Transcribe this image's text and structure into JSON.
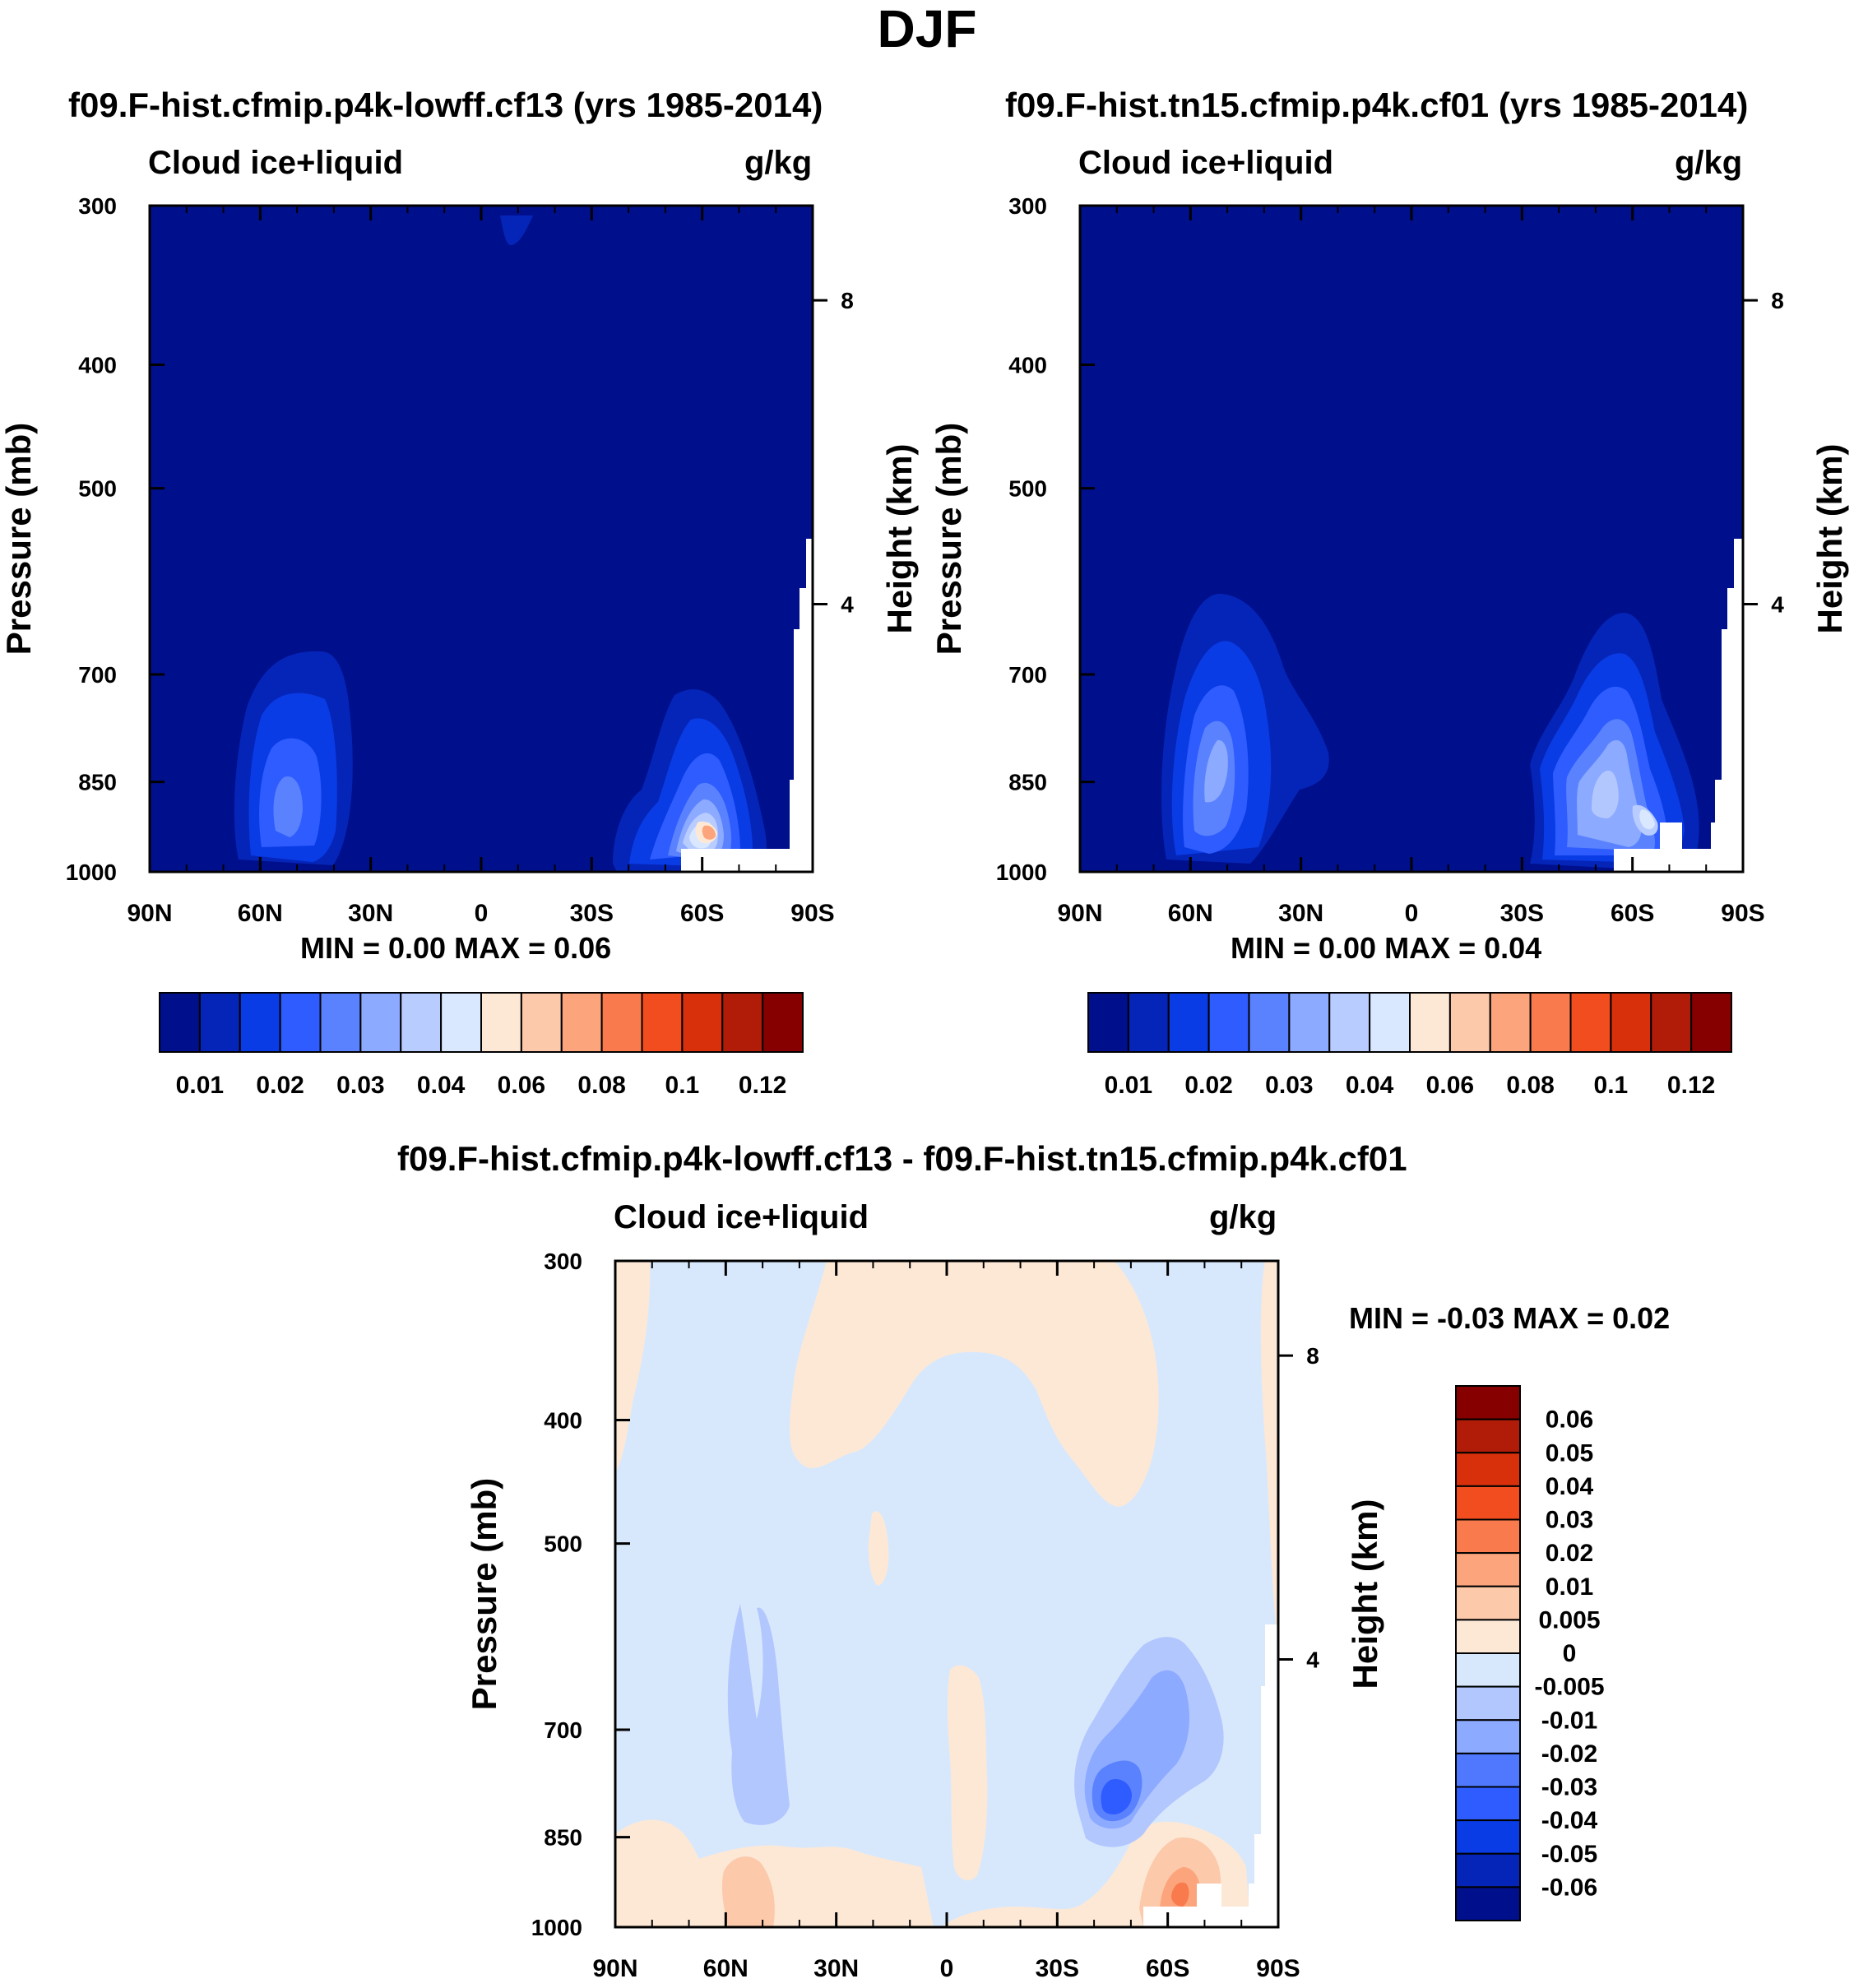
{
  "main_title": "DJF",
  "panels": [
    {
      "id": "top-left",
      "title": "f09.F-hist.cfmip.p4k-lowff.cf13 (yrs 1985-2014)",
      "field": "Cloud ice+liquid",
      "units": "g/kg",
      "minmax": "MIN =   0.00  MAX =   0.06"
    },
    {
      "id": "top-right",
      "title": "f09.F-hist.tn15.cfmip.p4k.cf01 (yrs 1985-2014)",
      "field": "Cloud ice+liquid",
      "units": "g/kg",
      "minmax": "MIN =   0.00  MAX =   0.04"
    },
    {
      "id": "bottom",
      "title": "f09.F-hist.cfmip.p4k-lowff.cf13 - f09.F-hist.tn15.cfmip.p4k.cf01",
      "field": "Cloud ice+liquid",
      "units": "g/kg",
      "minmax": "MIN =  -0.03  MAX =   0.02"
    }
  ],
  "axes": {
    "x_ticks": [
      "90N",
      "60N",
      "30N",
      "0",
      "30S",
      "60S",
      "90S"
    ],
    "y_ticks": [
      "300",
      "400",
      "500",
      "700",
      "850",
      "1000"
    ],
    "y_label": "Pressure (mb)",
    "y2_ticks": [
      "8",
      "4"
    ],
    "y2_label": "Height (km)"
  },
  "colorbar_abs": {
    "colors": [
      "#000f8c",
      "#0525b8",
      "#0a3ce6",
      "#2e5cff",
      "#5a82ff",
      "#8caaff",
      "#b8ccff",
      "#d9e8ff",
      "#fde8d6",
      "#fcc9aa",
      "#fca47c",
      "#f97a4c",
      "#f24d1e",
      "#d9300c",
      "#b01c08",
      "#860000"
    ],
    "labels": [
      "0.01",
      "0.02",
      "0.03",
      "0.04",
      "0.06",
      "0.08",
      "0.1",
      "0.12"
    ]
  },
  "colorbar_diff": {
    "colors": [
      "#000f8c",
      "#0525b8",
      "#0a3ce6",
      "#2e5cff",
      "#4f78ff",
      "#8caaff",
      "#b3c7ff",
      "#d8e8fc",
      "#fde8d6",
      "#fcc9aa",
      "#fca47c",
      "#f97a4c",
      "#f24d1e",
      "#d9300c",
      "#b01c08",
      "#860000"
    ],
    "labels": [
      "0.06",
      "0.05",
      "0.04",
      "0.03",
      "0.02",
      "0.01",
      "0.005",
      "0",
      "-0.005",
      "-0.01",
      "-0.02",
      "-0.03",
      "-0.04",
      "-0.05",
      "-0.06"
    ]
  },
  "chart_data": [
    {
      "type": "heatmap",
      "title": "f09.F-hist.cfmip.p4k-lowff.cf13 (yrs 1985-2014)",
      "subtitle": "Cloud ice+liquid",
      "units": "g/kg",
      "xlabel": "",
      "ylabel": "Pressure (mb)",
      "y2label": "Height (km)",
      "x_ticks": [
        "90N",
        "60N",
        "30N",
        "0",
        "30S",
        "60S",
        "90S"
      ],
      "y_ticks": [
        300,
        400,
        500,
        700,
        850,
        1000
      ],
      "xlim": [
        90,
        -90
      ],
      "ylim": [
        1000,
        300
      ],
      "y_scale": "log",
      "min": 0.0,
      "max": 0.06,
      "features": [
        {
          "lat": -60,
          "p": 940,
          "value": 0.06
        },
        {
          "lat": -60,
          "p": 910,
          "value": 0.04
        },
        {
          "lat": 54,
          "p": 920,
          "value": 0.03
        },
        {
          "lat": 52,
          "p": 880,
          "value": 0.02
        },
        {
          "lat": 0,
          "p": 500,
          "value": 0.005
        }
      ]
    },
    {
      "type": "heatmap",
      "title": "f09.F-hist.tn15.cfmip.p4k.cf01 (yrs 1985-2014)",
      "subtitle": "Cloud ice+liquid",
      "units": "g/kg",
      "xlabel": "",
      "ylabel": "Pressure (mb)",
      "y2label": "Height (km)",
      "x_ticks": [
        "90N",
        "60N",
        "30N",
        "0",
        "30S",
        "60S",
        "90S"
      ],
      "y_ticks": [
        300,
        400,
        500,
        700,
        850,
        1000
      ],
      "xlim": [
        90,
        -90
      ],
      "ylim": [
        1000,
        300
      ],
      "y_scale": "log",
      "min": 0.0,
      "max": 0.04,
      "features": [
        {
          "lat": 52,
          "p": 880,
          "value": 0.03
        },
        {
          "lat": -58,
          "p": 880,
          "value": 0.04
        },
        {
          "lat": -60,
          "p": 940,
          "value": 0.04
        }
      ]
    },
    {
      "type": "heatmap",
      "title": "f09.F-hist.cfmip.p4k-lowff.cf13 - f09.F-hist.tn15.cfmip.p4k.cf01",
      "subtitle": "Cloud ice+liquid",
      "units": "g/kg",
      "xlabel": "",
      "ylabel": "Pressure (mb)",
      "y2label": "Height (km)",
      "x_ticks": [
        "90N",
        "60N",
        "30N",
        "0",
        "30S",
        "60S",
        "90S"
      ],
      "y_ticks": [
        300,
        400,
        500,
        700,
        850,
        1000
      ],
      "xlim": [
        90,
        -90
      ],
      "ylim": [
        1000,
        300
      ],
      "y_scale": "log",
      "min": -0.03,
      "max": 0.02,
      "features": [
        {
          "lat": -45,
          "p": 880,
          "value": -0.03
        },
        {
          "lat": -42,
          "p": 800,
          "value": -0.01
        },
        {
          "lat": 55,
          "p": 800,
          "value": -0.005
        },
        {
          "lat": -62,
          "p": 960,
          "value": 0.02
        },
        {
          "lat": 10,
          "p": 450,
          "value": 0.005
        },
        {
          "lat": 55,
          "p": 960,
          "value": 0.005
        }
      ]
    }
  ]
}
